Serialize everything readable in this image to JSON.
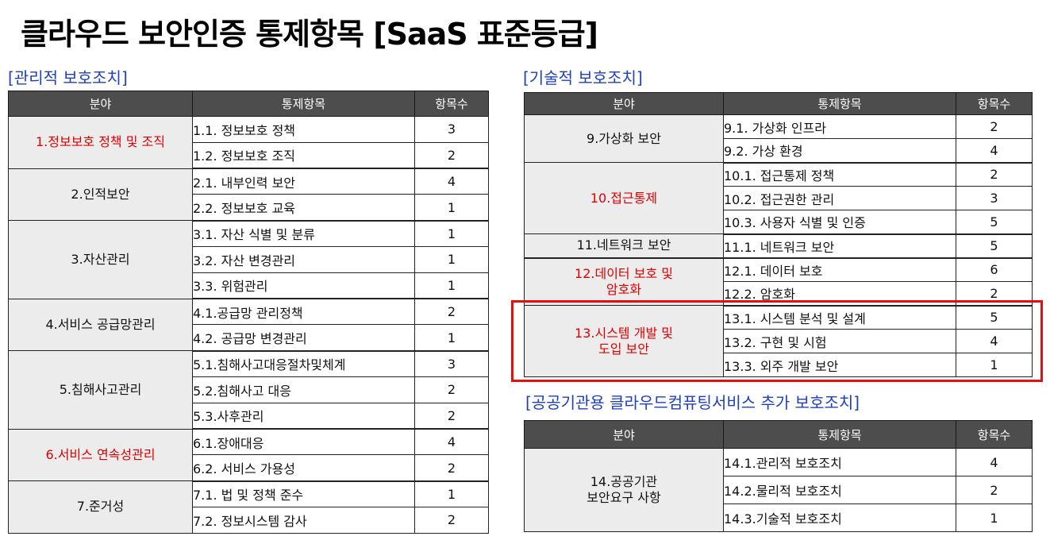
{
  "title": "클라우드 보안인증 통제항목 [SaaS 표준등급]",
  "headers": {
    "area": "분야",
    "control": "통제항목",
    "count": "항목수"
  },
  "management": {
    "title": "[관리적 보호조치]",
    "groups": [
      {
        "area": "1.정보보호 정책 및 조직",
        "highlight": true,
        "items": [
          {
            "name": "1.1. 정보보호 정책",
            "count": "3"
          },
          {
            "name": "1.2. 정보보호 조직",
            "count": "2"
          }
        ]
      },
      {
        "area": "2.인적보안",
        "highlight": false,
        "items": [
          {
            "name": "2.1. 내부인력 보안",
            "count": "4"
          },
          {
            "name": "2.2. 정보보호 교육",
            "count": "1"
          }
        ]
      },
      {
        "area": "3.자산관리",
        "highlight": false,
        "items": [
          {
            "name": "3.1. 자산 식별 및 분류",
            "count": "1"
          },
          {
            "name": "3.2. 자산 변경관리",
            "count": "1"
          },
          {
            "name": "3.3. 위험관리",
            "count": "1"
          }
        ]
      },
      {
        "area": "4.서비스 공급망관리",
        "highlight": false,
        "items": [
          {
            "name": "4.1.공급망 관리정책",
            "count": "2"
          },
          {
            "name": "4.2. 공급망 변경관리",
            "count": "1"
          }
        ]
      },
      {
        "area": "5.침해사고관리",
        "highlight": false,
        "items": [
          {
            "name": "5.1.침해사고대응절차및체계",
            "count": "3"
          },
          {
            "name": "5.2.침해사고 대응",
            "count": "2"
          },
          {
            "name": "5.3.사후관리",
            "count": "2"
          }
        ]
      },
      {
        "area": "6.서비스 연속성관리",
        "highlight": true,
        "items": [
          {
            "name": "6.1.장애대응",
            "count": "4"
          },
          {
            "name": "6.2. 서비스 가용성",
            "count": "2"
          }
        ]
      },
      {
        "area": "7.준거성",
        "highlight": false,
        "items": [
          {
            "name": "7.1. 법 및 정책 준수",
            "count": "1"
          },
          {
            "name": "7.2. 정보시스템 감사",
            "count": "2"
          }
        ]
      }
    ]
  },
  "technical": {
    "title": "[기술적 보호조치]",
    "groups": [
      {
        "area": "9.가상화 보안",
        "highlight": false,
        "items": [
          {
            "name": "9.1. 가상화 인프라",
            "count": "2"
          },
          {
            "name": "9.2. 가상 환경",
            "count": "4"
          }
        ]
      },
      {
        "area": "10.접근통제",
        "highlight": true,
        "items": [
          {
            "name": "10.1. 접근통제 정책",
            "count": "2"
          },
          {
            "name": "10.2. 접근권한 관리",
            "count": "3"
          },
          {
            "name": "10.3. 사용자 식별 및 인증",
            "count": "5"
          }
        ]
      },
      {
        "area": "11.네트워크 보안",
        "highlight": false,
        "items": [
          {
            "name": "11.1. 네트워크 보안",
            "count": "5"
          }
        ]
      },
      {
        "area": "12.데이터 보호 및\n암호화",
        "highlight": true,
        "items": [
          {
            "name": "12.1. 데이터 보호",
            "count": "6"
          },
          {
            "name": "12.2. 암호화",
            "count": "2"
          }
        ]
      },
      {
        "area": "13.시스템 개발 및\n도입 보안",
        "highlight": true,
        "items": [
          {
            "name": "13.1. 시스템 분석 및 설계",
            "count": "5"
          },
          {
            "name": "13.2. 구현 및 시험",
            "count": "4"
          },
          {
            "name": "13.3. 외주 개발 보안",
            "count": "1"
          }
        ]
      }
    ]
  },
  "public": {
    "title": "[공공기관용 클라우드컴퓨팅서비스 추가 보호조치]",
    "groups": [
      {
        "area": "14.공공기관\n보안요구 사항",
        "highlight": false,
        "items": [
          {
            "name": "14.1.관리적 보호조치",
            "count": "4"
          },
          {
            "name": "14.2.물리적 보호조치",
            "count": "2"
          },
          {
            "name": "14.3.기술적 보호조치",
            "count": "1"
          }
        ]
      }
    ]
  }
}
